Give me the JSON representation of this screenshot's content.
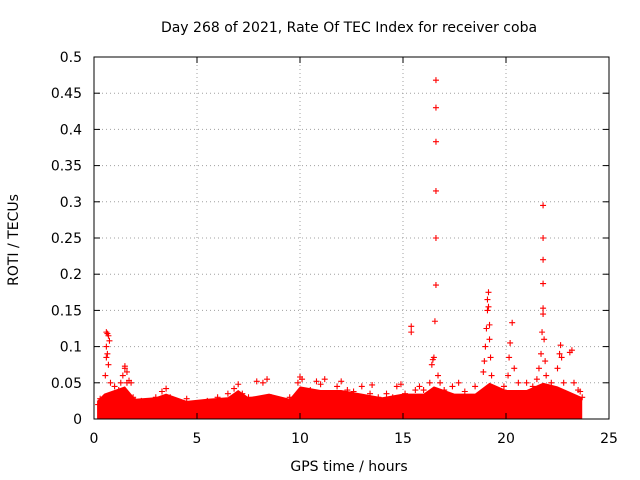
{
  "chart_data": {
    "type": "scatter",
    "title": "Day 268 of 2021, Rate Of TEC Index for receiver coba",
    "xlabel": "GPS time / hours",
    "ylabel": "ROTI / TECUs",
    "xlim": [
      0,
      25
    ],
    "ylim": [
      0,
      0.5
    ],
    "x_ticks": [
      0,
      5,
      10,
      15,
      20,
      25
    ],
    "x_tick_labels": [
      "0",
      "5",
      "10",
      "15",
      "20",
      "25"
    ],
    "y_ticks": [
      0,
      0.05,
      0.1,
      0.15,
      0.2,
      0.25,
      0.3,
      0.35,
      0.4,
      0.45,
      0.5
    ],
    "y_tick_labels": [
      "0",
      "0.05",
      "0.1",
      "0.15",
      "0.2",
      "0.25",
      "0.3",
      "0.35",
      "0.4",
      "0.45",
      "0.5"
    ],
    "grid": true,
    "marker": "plus",
    "color": "#ff0000",
    "series": [
      {
        "name": "ROTI",
        "points": [
          [
            0.2,
            0.02
          ],
          [
            0.3,
            0.028
          ],
          [
            0.4,
            0.015
          ],
          [
            0.5,
            0.03
          ],
          [
            0.55,
            0.06
          ],
          [
            0.6,
            0.085
          ],
          [
            0.6,
            0.1
          ],
          [
            0.6,
            0.12
          ],
          [
            0.65,
            0.118
          ],
          [
            0.65,
            0.09
          ],
          [
            0.7,
            0.075
          ],
          [
            0.7,
            0.115
          ],
          [
            0.75,
            0.108
          ],
          [
            0.8,
            0.05
          ],
          [
            0.9,
            0.03
          ],
          [
            1.0,
            0.045
          ],
          [
            1.1,
            0.035
          ],
          [
            1.2,
            0.04
          ],
          [
            1.3,
            0.05
          ],
          [
            1.4,
            0.06
          ],
          [
            1.5,
            0.07
          ],
          [
            1.5,
            0.073
          ],
          [
            1.6,
            0.065
          ],
          [
            1.6,
            0.05
          ],
          [
            1.7,
            0.053
          ],
          [
            1.8,
            0.05
          ],
          [
            1.9,
            0.03
          ],
          [
            2.0,
            0.025
          ],
          [
            2.3,
            0.025
          ],
          [
            2.6,
            0.02
          ],
          [
            3.0,
            0.03
          ],
          [
            3.3,
            0.038
          ],
          [
            3.5,
            0.042
          ],
          [
            3.7,
            0.03
          ],
          [
            4.0,
            0.025
          ],
          [
            4.5,
            0.028
          ],
          [
            5.0,
            0.02
          ],
          [
            5.5,
            0.025
          ],
          [
            6.0,
            0.03
          ],
          [
            6.5,
            0.035
          ],
          [
            6.8,
            0.042
          ],
          [
            7.0,
            0.048
          ],
          [
            7.2,
            0.035
          ],
          [
            7.5,
            0.03
          ],
          [
            7.9,
            0.052
          ],
          [
            8.2,
            0.05
          ],
          [
            8.4,
            0.055
          ],
          [
            8.6,
            0.03
          ],
          [
            9.0,
            0.025
          ],
          [
            9.5,
            0.03
          ],
          [
            9.9,
            0.05
          ],
          [
            10.0,
            0.058
          ],
          [
            10.1,
            0.055
          ],
          [
            10.3,
            0.035
          ],
          [
            10.5,
            0.04
          ],
          [
            10.8,
            0.052
          ],
          [
            11.0,
            0.048
          ],
          [
            11.2,
            0.055
          ],
          [
            11.5,
            0.03
          ],
          [
            11.8,
            0.045
          ],
          [
            12.0,
            0.052
          ],
          [
            12.3,
            0.04
          ],
          [
            12.6,
            0.038
          ],
          [
            13.0,
            0.045
          ],
          [
            13.4,
            0.035
          ],
          [
            13.5,
            0.047
          ],
          [
            13.8,
            0.03
          ],
          [
            14.2,
            0.035
          ],
          [
            14.5,
            0.03
          ],
          [
            14.7,
            0.045
          ],
          [
            14.9,
            0.048
          ],
          [
            15.1,
            0.035
          ],
          [
            15.3,
            0.03
          ],
          [
            15.4,
            0.12
          ],
          [
            15.4,
            0.128
          ],
          [
            15.6,
            0.04
          ],
          [
            15.8,
            0.045
          ],
          [
            16.0,
            0.04
          ],
          [
            16.3,
            0.05
          ],
          [
            16.4,
            0.075
          ],
          [
            16.45,
            0.082
          ],
          [
            16.5,
            0.085
          ],
          [
            16.55,
            0.135
          ],
          [
            16.6,
            0.185
          ],
          [
            16.6,
            0.25
          ],
          [
            16.6,
            0.315
          ],
          [
            16.6,
            0.383
          ],
          [
            16.6,
            0.43
          ],
          [
            16.6,
            0.468
          ],
          [
            16.7,
            0.06
          ],
          [
            16.8,
            0.05
          ],
          [
            17.0,
            0.04
          ],
          [
            17.4,
            0.045
          ],
          [
            17.7,
            0.05
          ],
          [
            18.0,
            0.038
          ],
          [
            18.5,
            0.045
          ],
          [
            18.9,
            0.065
          ],
          [
            18.95,
            0.08
          ],
          [
            19.0,
            0.1
          ],
          [
            19.05,
            0.125
          ],
          [
            19.1,
            0.15
          ],
          [
            19.1,
            0.165
          ],
          [
            19.15,
            0.175
          ],
          [
            19.15,
            0.155
          ],
          [
            19.2,
            0.13
          ],
          [
            19.2,
            0.11
          ],
          [
            19.25,
            0.085
          ],
          [
            19.3,
            0.06
          ],
          [
            19.6,
            0.04
          ],
          [
            19.9,
            0.045
          ],
          [
            20.1,
            0.06
          ],
          [
            20.15,
            0.085
          ],
          [
            20.2,
            0.105
          ],
          [
            20.3,
            0.133
          ],
          [
            20.4,
            0.07
          ],
          [
            20.6,
            0.05
          ],
          [
            21.0,
            0.05
          ],
          [
            21.3,
            0.045
          ],
          [
            21.5,
            0.055
          ],
          [
            21.6,
            0.07
          ],
          [
            21.7,
            0.09
          ],
          [
            21.75,
            0.12
          ],
          [
            21.8,
            0.145
          ],
          [
            21.8,
            0.153
          ],
          [
            21.8,
            0.187
          ],
          [
            21.8,
            0.22
          ],
          [
            21.8,
            0.25
          ],
          [
            21.8,
            0.295
          ],
          [
            21.85,
            0.11
          ],
          [
            21.9,
            0.08
          ],
          [
            21.95,
            0.06
          ],
          [
            22.2,
            0.05
          ],
          [
            22.5,
            0.07
          ],
          [
            22.6,
            0.09
          ],
          [
            22.65,
            0.102
          ],
          [
            22.7,
            0.085
          ],
          [
            22.8,
            0.05
          ],
          [
            23.1,
            0.092
          ],
          [
            23.2,
            0.095
          ],
          [
            23.3,
            0.05
          ],
          [
            23.5,
            0.04
          ],
          [
            23.6,
            0.038
          ],
          [
            23.7,
            0.03
          ]
        ]
      }
    ]
  }
}
